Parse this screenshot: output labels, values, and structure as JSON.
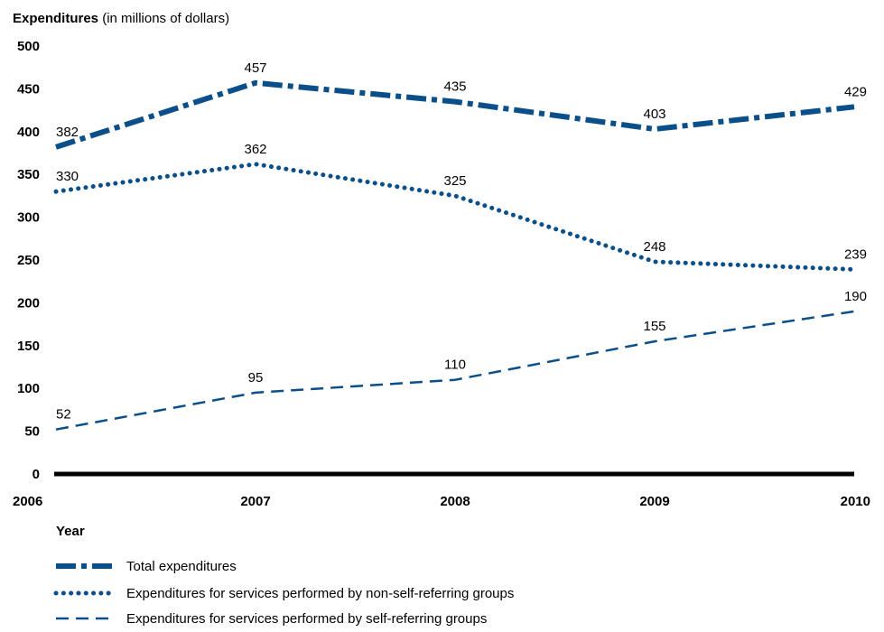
{
  "chart_data": {
    "type": "line",
    "title_bold": "Expenditures",
    "title_rest": " (in millions of dollars)",
    "xlabel": "Year",
    "categories": [
      "2006",
      "2007",
      "2008",
      "2009",
      "2010"
    ],
    "ylim": [
      0,
      500
    ],
    "yticks": [
      0,
      50,
      100,
      150,
      200,
      250,
      300,
      350,
      400,
      450,
      500
    ],
    "grid": false,
    "legend_position": "bottom-left",
    "color": "#0b4f8a",
    "series": [
      {
        "name": "Total expenditures",
        "style": "dash-dot",
        "values": [
          382,
          457,
          435,
          403,
          429
        ]
      },
      {
        "name": "Expenditures for services performed by non-self-referring groups",
        "style": "dotted",
        "values": [
          330,
          362,
          325,
          248,
          239
        ]
      },
      {
        "name": "Expenditures for services performed by self-referring groups",
        "style": "dashed",
        "values": [
          52,
          95,
          110,
          155,
          190
        ]
      }
    ]
  }
}
